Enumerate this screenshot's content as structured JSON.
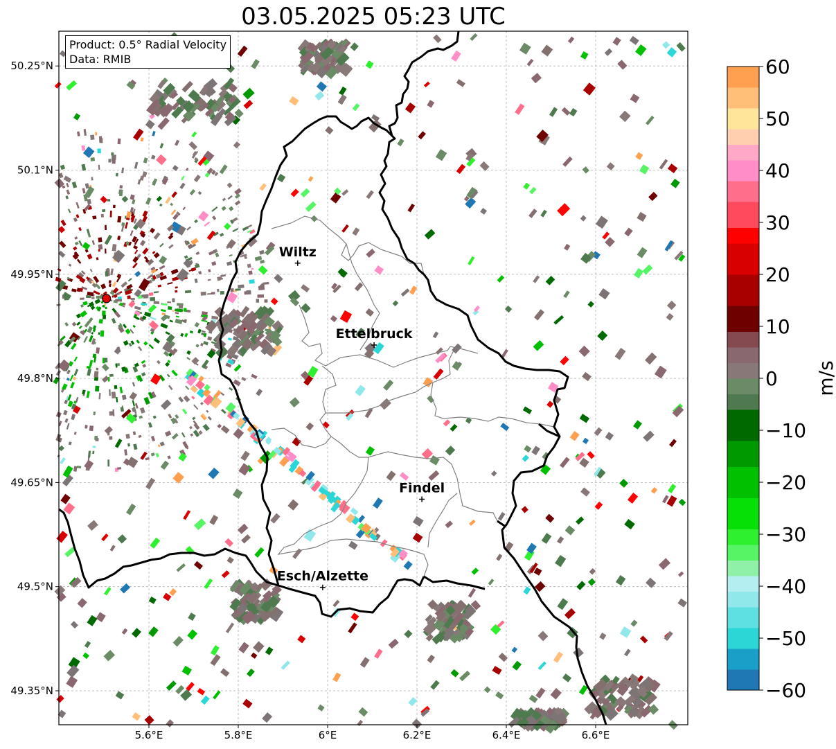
{
  "title": "03.05.2025 05:23 UTC",
  "info": {
    "product": "Product: 0.5° Radial Velocity",
    "data": "Data: RMIB"
  },
  "map": {
    "lon_range": [
      5.4,
      6.8
    ],
    "lat_range": [
      49.3,
      50.3
    ],
    "x_ticks": [
      {
        "value": 5.6,
        "label": "5.6°E"
      },
      {
        "value": 5.8,
        "label": "5.8°E"
      },
      {
        "value": 6.0,
        "label": "6°E"
      },
      {
        "value": 6.2,
        "label": "6.2°E"
      },
      {
        "value": 6.4,
        "label": "6.4°E"
      },
      {
        "value": 6.6,
        "label": "6.6°E"
      }
    ],
    "y_ticks": [
      {
        "value": 50.25,
        "label": "50.25°N"
      },
      {
        "value": 50.1,
        "label": "50.1°N"
      },
      {
        "value": 49.95,
        "label": "49.95°N"
      },
      {
        "value": 49.8,
        "label": "49.8°N"
      },
      {
        "value": 49.65,
        "label": "49.65°N"
      },
      {
        "value": 49.5,
        "label": "49.5°N"
      },
      {
        "value": 49.35,
        "label": "49.35°N"
      }
    ],
    "grid": true,
    "radar_site": {
      "lon": 5.505,
      "lat": 49.915
    },
    "cities": [
      {
        "name": "Wiltz",
        "lon": 5.933,
        "lat": 49.966
      },
      {
        "name": "Ettelbruck",
        "lon": 6.104,
        "lat": 49.848
      },
      {
        "name": "Findel",
        "lon": 6.211,
        "lat": 49.626
      },
      {
        "name": "Esch/Alzette",
        "lon": 5.989,
        "lat": 49.499
      }
    ]
  },
  "colorbar": {
    "label": "m/s",
    "min": -60,
    "max": 60,
    "ticks": [
      {
        "value": 60,
        "label": "60"
      },
      {
        "value": 50,
        "label": "50"
      },
      {
        "value": 40,
        "label": "40"
      },
      {
        "value": 30,
        "label": "30"
      },
      {
        "value": 20,
        "label": "20"
      },
      {
        "value": 10,
        "label": "10"
      },
      {
        "value": 0,
        "label": "0"
      },
      {
        "value": -10,
        "label": "−10"
      },
      {
        "value": -20,
        "label": "−20"
      },
      {
        "value": -30,
        "label": "−30"
      },
      {
        "value": -40,
        "label": "−40"
      },
      {
        "value": -50,
        "label": "−50"
      },
      {
        "value": -60,
        "label": "−60"
      }
    ],
    "stops": [
      {
        "from": -60,
        "to": -56,
        "color": "#1f77b4"
      },
      {
        "from": -56,
        "to": -52,
        "color": "#1aa0c8"
      },
      {
        "from": -52,
        "to": -48,
        "color": "#2ad6d6"
      },
      {
        "from": -48,
        "to": -44,
        "color": "#5ee0e0"
      },
      {
        "from": -44,
        "to": -41,
        "color": "#90e8ea"
      },
      {
        "from": -41,
        "to": -38,
        "color": "#b4eef0"
      },
      {
        "from": -38,
        "to": -35,
        "color": "#8ff0a8"
      },
      {
        "from": -35,
        "to": -32,
        "color": "#55f565"
      },
      {
        "from": -32,
        "to": -29,
        "color": "#2ef02e"
      },
      {
        "from": -29,
        "to": -23,
        "color": "#06e006"
      },
      {
        "from": -23,
        "to": -17,
        "color": "#00c000"
      },
      {
        "from": -17,
        "to": -12,
        "color": "#009a00"
      },
      {
        "from": -12,
        "to": -6,
        "color": "#006a00"
      },
      {
        "from": -6,
        "to": -3,
        "color": "#4f7a4f"
      },
      {
        "from": -3,
        "to": 0,
        "color": "#6b8a66"
      },
      {
        "from": 0,
        "to": 3,
        "color": "#887878"
      },
      {
        "from": 3,
        "to": 6,
        "color": "#8a6870"
      },
      {
        "from": 6,
        "to": 9,
        "color": "#854a4f"
      },
      {
        "from": 9,
        "to": 14,
        "color": "#6e0000"
      },
      {
        "from": 14,
        "to": 20,
        "color": "#a80000"
      },
      {
        "from": 20,
        "to": 26,
        "color": "#d80000"
      },
      {
        "from": 26,
        "to": 29,
        "color": "#ff0000"
      },
      {
        "from": 29,
        "to": 34,
        "color": "#ff4a5e"
      },
      {
        "from": 34,
        "to": 38,
        "color": "#ff6e8a"
      },
      {
        "from": 38,
        "to": 42,
        "color": "#ff8ec8"
      },
      {
        "from": 42,
        "to": 45,
        "color": "#ffa8c8"
      },
      {
        "from": 45,
        "to": 48,
        "color": "#ffcfb0"
      },
      {
        "from": 48,
        "to": 52,
        "color": "#ffe59a"
      },
      {
        "from": 52,
        "to": 56,
        "color": "#ffbf78"
      },
      {
        "from": 56,
        "to": 60,
        "color": "#ffa050"
      }
    ]
  }
}
